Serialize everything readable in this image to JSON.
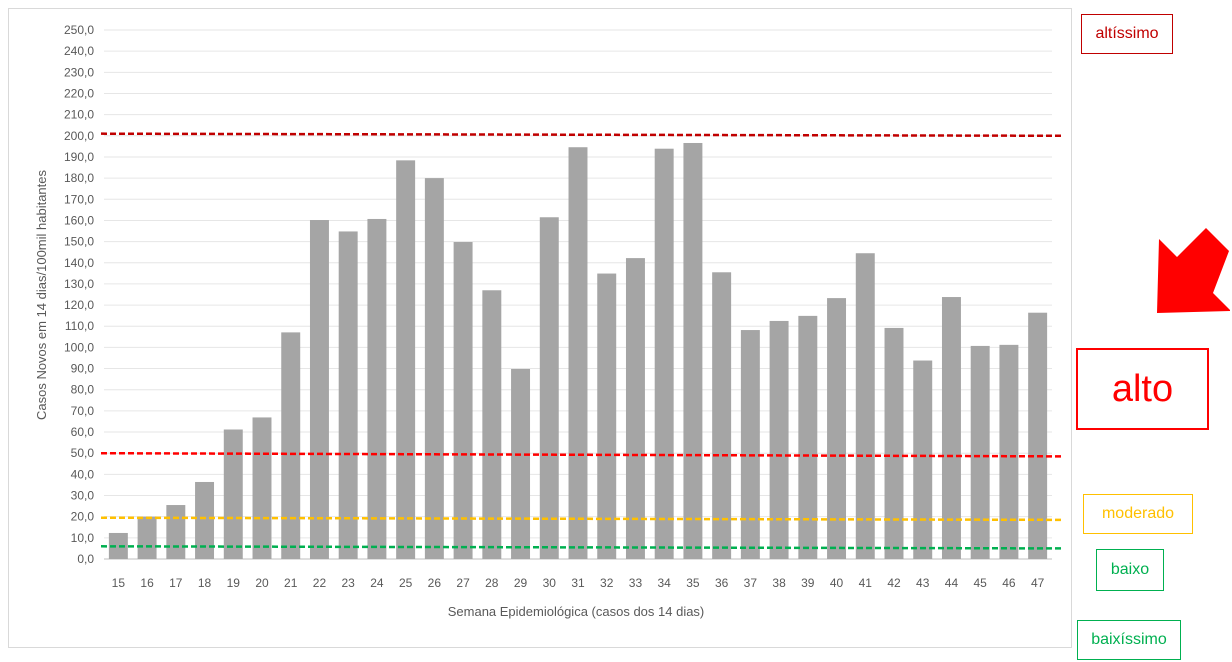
{
  "chart_data": {
    "type": "bar",
    "title": "",
    "xlabel": "Semana Epidemiológica (casos dos 14 dias)",
    "ylabel": "Casos Novos em 14 dias/100mil habitantes",
    "categories": [
      "15",
      "16",
      "17",
      "18",
      "19",
      "20",
      "21",
      "22",
      "23",
      "24",
      "25",
      "26",
      "27",
      "28",
      "29",
      "30",
      "31",
      "32",
      "33",
      "34",
      "35",
      "36",
      "37",
      "38",
      "39",
      "40",
      "41",
      "42",
      "43",
      "44",
      "45",
      "46",
      "47"
    ],
    "series": [
      {
        "values": [
          12.3,
          20.0,
          25.5,
          36.4,
          61.2,
          66.9,
          107.1,
          160.2,
          154.8,
          160.7,
          188.4,
          180.0,
          149.8,
          127.0,
          89.8,
          161.5,
          194.6,
          134.9,
          142.2,
          193.9,
          196.6,
          135.5,
          108.2,
          112.5,
          114.9,
          123.3,
          144.5,
          109.2,
          93.8,
          123.8,
          100.7,
          101.2,
          116.4
        ],
        "color": "#a5a5a5"
      }
    ],
    "ylim": [
      0,
      250
    ],
    "ytick_step": 10,
    "ytick_labels": [
      "0,0",
      "10,0",
      "20,0",
      "30,0",
      "40,0",
      "50,0",
      "60,0",
      "70,0",
      "80,0",
      "90,0",
      "100,0",
      "110,0",
      "120,0",
      "130,0",
      "140,0",
      "150,0",
      "160,0",
      "170,0",
      "180,0",
      "190,0",
      "200,0",
      "210,0",
      "220,0",
      "230,0",
      "240,0",
      "250,0"
    ],
    "grid": true,
    "legend": "none",
    "threshold_lines": [
      {
        "level": "altissimo",
        "y_start": 201,
        "y_end": 200,
        "color": "#c00000"
      },
      {
        "level": "alto",
        "y_start": 50,
        "y_end": 48.5,
        "color": "#ff0000"
      },
      {
        "level": "moderado",
        "y_start": 19.5,
        "y_end": 18.5,
        "color": "#ffc000"
      },
      {
        "level": "baixo",
        "y_start": 6,
        "y_end": 5,
        "color": "#00b050"
      }
    ]
  },
  "levels": {
    "altissimo": {
      "label": "altíssimo",
      "color": "#c00000"
    },
    "alto": {
      "label": "alto",
      "color": "#ff0000"
    },
    "moderado": {
      "label": "moderado",
      "color": "#ffc000"
    },
    "baixo": {
      "label": "baixo",
      "color": "#00b050"
    },
    "baixissimo": {
      "label": "baixíssimo",
      "color": "#00b050"
    }
  },
  "indicator": {
    "icon": "red-arrow-icon",
    "color": "#ff0000",
    "points_to": "alto"
  }
}
